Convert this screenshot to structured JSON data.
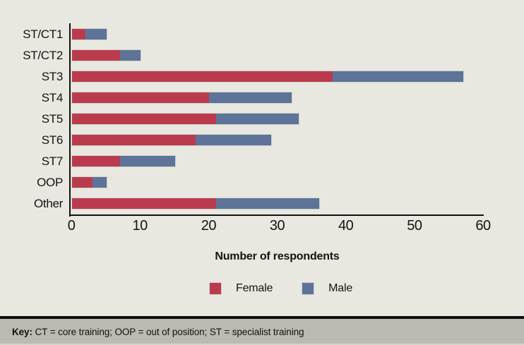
{
  "chart_data": {
    "type": "bar",
    "orientation": "horizontal",
    "stacked": true,
    "title": "",
    "categories": [
      "ST/CT1",
      "ST/CT2",
      "ST3",
      "ST4",
      "ST5",
      "ST6",
      "ST7",
      "OOP",
      "Other"
    ],
    "series": [
      {
        "name": "Female",
        "color": "#bb3b4e",
        "values": [
          2,
          7,
          38,
          20,
          21,
          18,
          7,
          3,
          21
        ]
      },
      {
        "name": "Male",
        "color": "#5d7398",
        "values": [
          3,
          3,
          19,
          12,
          12,
          11,
          8,
          2,
          15
        ]
      }
    ],
    "totals": [
      5,
      10,
      57,
      32,
      33,
      29,
      15,
      5,
      36
    ],
    "xlabel": "Number of respondents",
    "ylabel": "",
    "xlim": [
      0,
      60
    ],
    "xticks": [
      0,
      10,
      20,
      30,
      40,
      50,
      60
    ],
    "grid": false,
    "legend_position": "bottom"
  },
  "footer": {
    "key_label": "Key:",
    "key_text": " CT = core training; OOP = out of position; ST = specialist training"
  },
  "colors": {
    "background": "#e8e7e0",
    "female": "#bb3b4e",
    "male": "#5d7398",
    "axis": "#111111",
    "footer_bg": "#bcb9b2",
    "bar_outline": "#cfd2cb"
  }
}
